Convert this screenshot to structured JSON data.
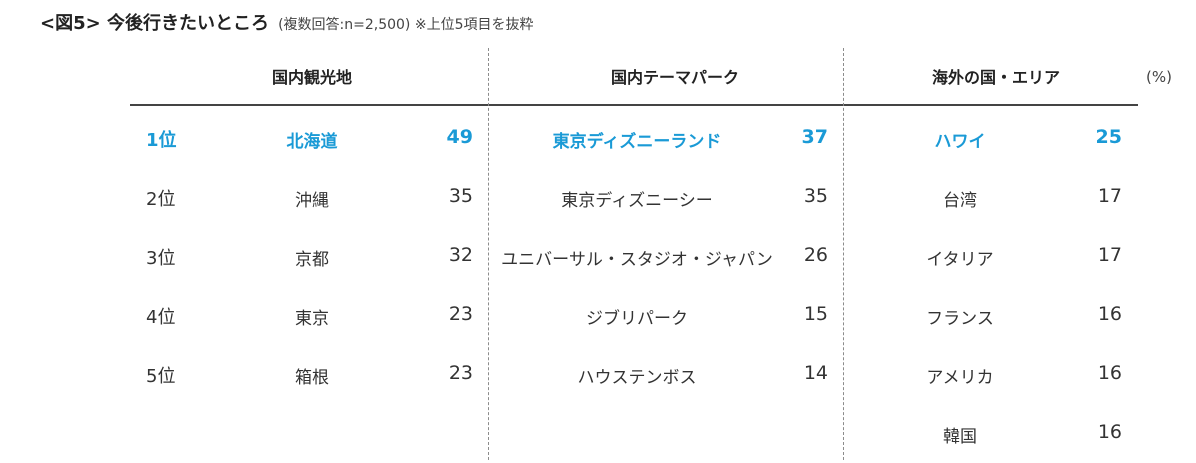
{
  "title": {
    "main": "<図5> 今後行きたいところ",
    "sub": "(複数回答:n=2,500) ※上位5項目を抜粋"
  },
  "unit": "(%)",
  "ranks": [
    "1位",
    "2位",
    "3位",
    "4位",
    "5位"
  ],
  "colors": {
    "highlight": "#1a9ad6",
    "text": "#333333",
    "divider": "#8c8c8c"
  },
  "chart_data": {
    "type": "table",
    "columns": [
      {
        "header": "国内観光地",
        "rows": [
          {
            "name": "北海道",
            "value": 49
          },
          {
            "name": "沖縄",
            "value": 35
          },
          {
            "name": "京都",
            "value": 32
          },
          {
            "name": "東京",
            "value": 23
          },
          {
            "name": "箱根",
            "value": 23
          }
        ]
      },
      {
        "header": "国内テーマパーク",
        "rows": [
          {
            "name": "東京ディズニーランド",
            "value": 37
          },
          {
            "name": "東京ディズニーシー",
            "value": 35
          },
          {
            "name": "ユニバーサル・スタジオ・ジャパン",
            "value": 26
          },
          {
            "name": "ジブリパーク",
            "value": 15
          },
          {
            "name": "ハウステンボス",
            "value": 14
          }
        ]
      },
      {
        "header": "海外の国・エリア",
        "rows": [
          {
            "name": "ハワイ",
            "value": 25
          },
          {
            "name": "台湾",
            "value": 17
          },
          {
            "name": "イタリア",
            "value": 17
          },
          {
            "name": "フランス",
            "value": 16
          },
          {
            "name": "アメリカ",
            "value": 16
          },
          {
            "name": "韓国",
            "value": 16
          }
        ]
      }
    ]
  }
}
